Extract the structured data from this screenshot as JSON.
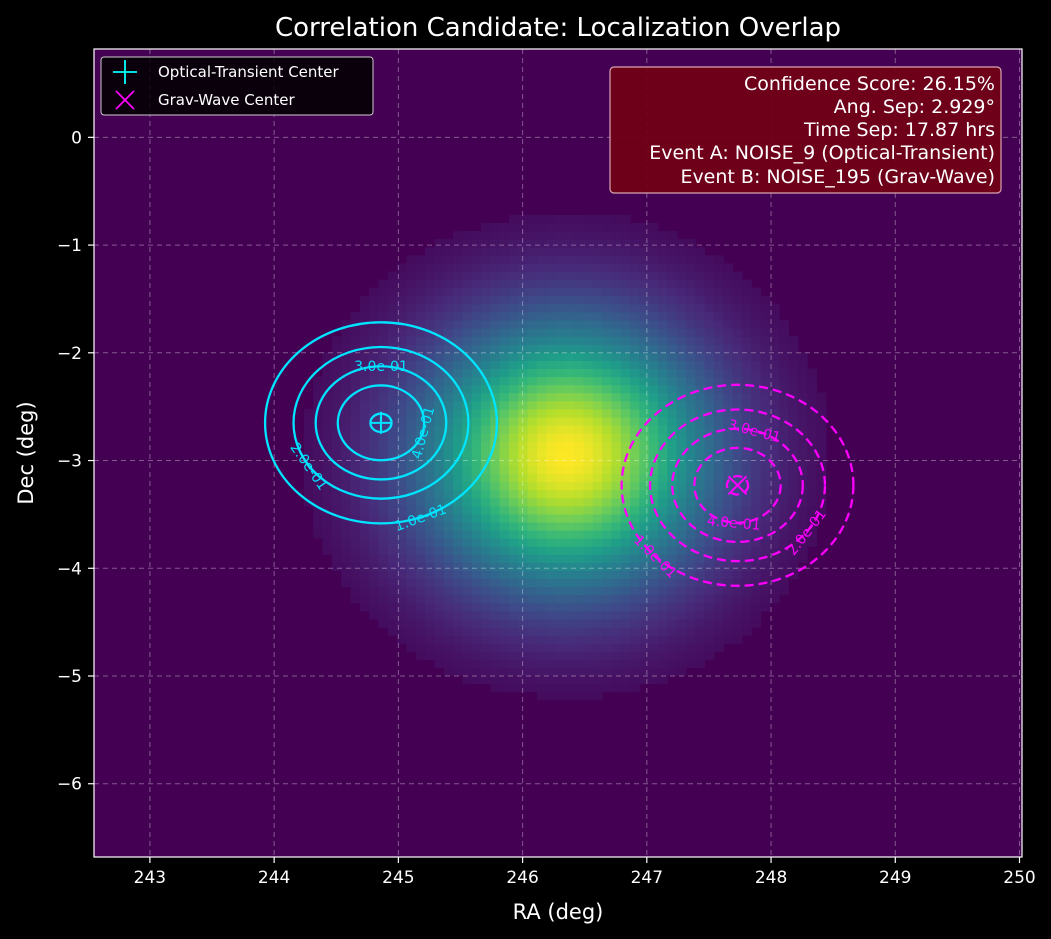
{
  "chart_data": {
    "type": "heatmap",
    "title": "Correlation Candidate: Localization Overlap",
    "xlabel": "RA (deg)",
    "ylabel": "Dec (deg)",
    "xlim": [
      242.55,
      250.02
    ],
    "ylim": [
      -6.68,
      0.82
    ],
    "xticks": [
      243,
      244,
      245,
      246,
      247,
      248,
      249,
      250
    ],
    "yticks": [
      0,
      -1,
      -2,
      -3,
      -4,
      -5,
      -6
    ],
    "grid": true,
    "legend_position": "top-left",
    "legend": [
      {
        "label": "Optical-Transient Center",
        "marker": "plus",
        "color": "#00ffff"
      },
      {
        "label": "Grav-Wave Center",
        "marker": "x",
        "color": "#ff00ff"
      }
    ],
    "overlap_density": {
      "center": [
        246.35,
        -2.95
      ],
      "sigma": [
        0.8,
        0.85
      ],
      "colormap": "viridis",
      "background": "#440154"
    },
    "events": [
      {
        "name": "Optical-Transient Center",
        "center": [
          244.86,
          -2.65
        ],
        "color": "#00e5ff",
        "linestyle": "solid",
        "sigma": 0.52,
        "contour_levels": [
          0.1,
          0.2,
          0.3,
          0.4,
          0.5
        ],
        "contour_labels": [
          {
            "text": "1.0e-01",
            "angle_deg": -70
          },
          {
            "text": "2.0e-01",
            "angle_deg": -145
          },
          {
            "text": "3.0e-01",
            "angle_deg": 90
          },
          {
            "text": "4.0e-01",
            "angle_deg": -15
          }
        ]
      },
      {
        "name": "Grav-Wave Center",
        "center": [
          247.73,
          -3.23
        ],
        "color": "#ff00ff",
        "linestyle": "dashed",
        "sigma": 0.52,
        "contour_levels": [
          0.1,
          0.2,
          0.3,
          0.4,
          0.5
        ],
        "contour_labels": [
          {
            "text": "1.0e-01",
            "angle_deg": -135
          },
          {
            "text": "2.0e-01",
            "angle_deg": -38
          },
          {
            "text": "3.0e-01",
            "angle_deg": 75
          },
          {
            "text": "4.0e-01",
            "angle_deg": -95
          }
        ]
      }
    ],
    "info_box": {
      "lines": [
        "Confidence Score: 26.15%",
        "Ang. Sep: 2.929°",
        "Time Sep: 17.87 hrs",
        "Event A: NOISE_9 (Optical-Transient)",
        "Event B: NOISE_195 (Grav-Wave)"
      ],
      "background": "#720016"
    },
    "colors": {
      "figure_background": "#000000",
      "axes_edge": "#ffffff",
      "grid": "#ffffff"
    }
  }
}
